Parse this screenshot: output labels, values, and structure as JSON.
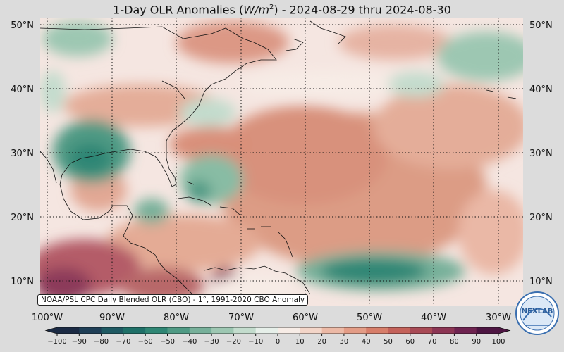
{
  "title_main": "1-Day OLR Anomalies (",
  "title_unit": "W/m",
  "title_sup": "2",
  "title_rest": ") - 2024-08-29 thru 2024-08-30",
  "credit": "NOAA/PSL CPC Daily Blended OLR (CBO) - 1°, 1991-2020 CBO Anomaly",
  "logo_text": "NEXLAB",
  "lat_labels": [
    "50°N",
    "40°N",
    "30°N",
    "20°N",
    "10°N"
  ],
  "lon_labels": [
    "100°W",
    "90°W",
    "80°W",
    "70°W",
    "60°W",
    "50°W",
    "40°W",
    "30°W"
  ],
  "colorbar": {
    "ticks": [
      "−100",
      "−90",
      "−80",
      "−70",
      "−60",
      "−50",
      "−40",
      "−30",
      "−20",
      "−10",
      "0",
      "10",
      "20",
      "30",
      "40",
      "50",
      "60",
      "70",
      "80",
      "90",
      "100"
    ],
    "colors": [
      "#1b2a44",
      "#1f3f57",
      "#1f5a63",
      "#1f7068",
      "#2f8674",
      "#4f9a84",
      "#77b09a",
      "#9dc7b2",
      "#c3dccd",
      "#e6efe9",
      "#f7ece6",
      "#f3d5c8",
      "#ecb9a6",
      "#e39c86",
      "#d77e6a",
      "#c4625a",
      "#a84a55",
      "#8c3554",
      "#6e2350",
      "#4d1542"
    ]
  }
}
